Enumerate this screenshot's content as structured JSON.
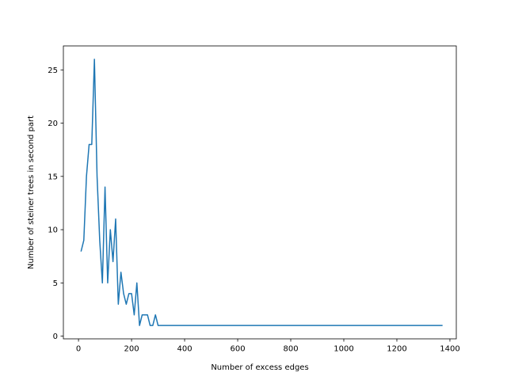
{
  "chart_data": {
    "type": "line",
    "title": "",
    "xlabel": "Number of excess edges",
    "ylabel": "Number of steiner trees in second part",
    "xlim": [
      -57,
      1424
    ],
    "ylim": [
      -0.25,
      27.25
    ],
    "xticks": [
      0,
      200,
      400,
      600,
      800,
      1000,
      1200,
      1400
    ],
    "yticks": [
      0,
      5,
      10,
      15,
      20,
      25
    ],
    "grid": false,
    "legend": "none",
    "series": [
      {
        "color": "#1f77b4",
        "x": [
          10,
          20,
          30,
          40,
          50,
          60,
          70,
          80,
          90,
          100,
          110,
          120,
          130,
          140,
          150,
          160,
          170,
          180,
          190,
          200,
          210,
          220,
          230,
          240,
          250,
          260,
          270,
          280,
          290,
          300,
          310,
          400,
          500,
          600,
          700,
          800,
          900,
          1000,
          1100,
          1200,
          1300,
          1370
        ],
        "y": [
          8,
          9,
          15,
          18,
          18,
          26,
          15,
          9,
          5,
          14,
          5,
          10,
          7,
          11,
          3,
          6,
          4,
          3,
          4,
          4,
          2,
          5,
          1,
          2,
          2,
          2,
          1,
          1,
          2,
          1,
          1,
          1,
          1,
          1,
          1,
          1,
          1,
          1,
          1,
          1,
          1,
          1
        ]
      }
    ]
  }
}
